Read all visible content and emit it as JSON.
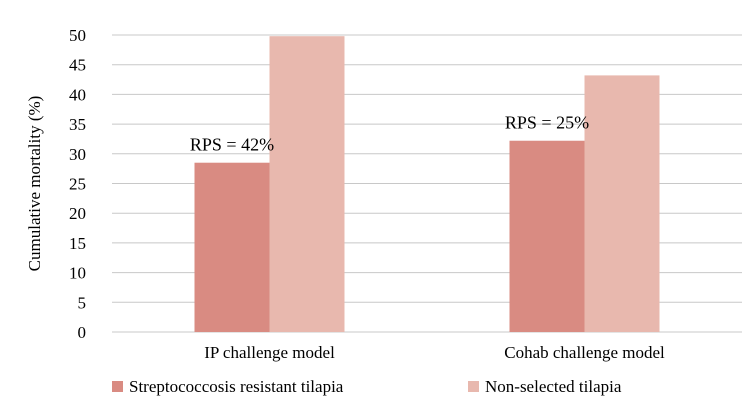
{
  "chart_data": {
    "type": "bar",
    "categories": [
      "IP challenge model",
      "Cohab challenge model"
    ],
    "series": [
      {
        "name": "Streptococcosis resistant tilapia",
        "values": [
          28.5,
          32.2
        ],
        "color": "#d98b82"
      },
      {
        "name": "Non-selected tilapia",
        "values": [
          49.8,
          43.2
        ],
        "color": "#e8b8ae"
      }
    ],
    "annotations": [
      "RPS = 42%",
      "RPS = 25%"
    ],
    "title": "",
    "xlabel": "",
    "ylabel": "Cumulative mortality (%)",
    "ylim": [
      0,
      50
    ],
    "yticks": [
      0,
      5,
      10,
      15,
      20,
      25,
      30,
      35,
      40,
      45,
      50
    ],
    "grid": true,
    "gridline_color": "#c8c8c8",
    "legend_position": "bottom"
  }
}
